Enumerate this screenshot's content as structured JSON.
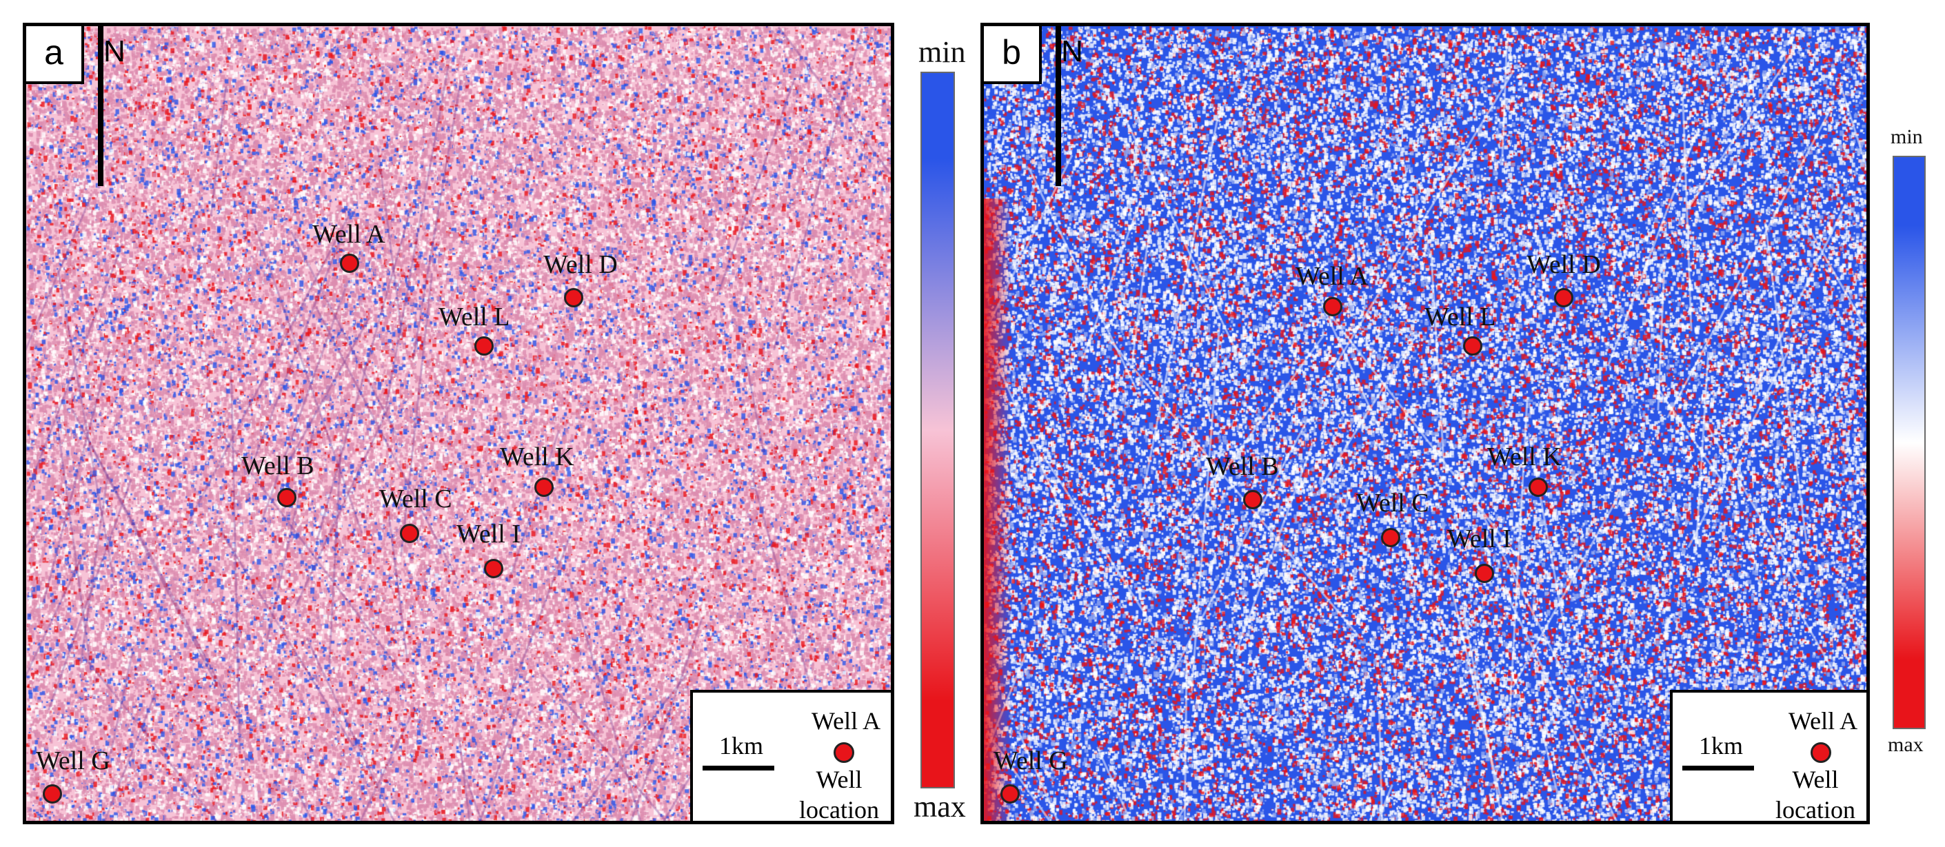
{
  "panels": [
    {
      "label": "a",
      "north": "N",
      "colors": {
        "min": "#2a55e8",
        "mid": "#f7c3d6",
        "max": "#e8141a"
      },
      "wells": [
        {
          "name": "Well A"
        },
        {
          "name": "Well D"
        },
        {
          "name": "Well L"
        },
        {
          "name": "Well K"
        },
        {
          "name": "Well B"
        },
        {
          "name": "Well C"
        },
        {
          "name": "Well I"
        },
        {
          "name": "Well G"
        }
      ],
      "legend": {
        "scale": "1km",
        "well_label": "Well A",
        "desc_line1": "Well",
        "desc_line2": "location"
      },
      "colorbar": {
        "top": "min",
        "bottom": "max"
      }
    },
    {
      "label": "b",
      "north": "N",
      "colors": {
        "min": "#2a55e8",
        "mid": "#ffffff",
        "max": "#e8141a"
      },
      "wells": [
        {
          "name": "Well A"
        },
        {
          "name": "Well D"
        },
        {
          "name": "Well L"
        },
        {
          "name": "Well K"
        },
        {
          "name": "Well B"
        },
        {
          "name": "Well C"
        },
        {
          "name": "Well I"
        },
        {
          "name": "Well G"
        }
      ],
      "legend": {
        "scale": "1km",
        "well_label": "Well A",
        "desc_line1": "Well",
        "desc_line2": "location"
      },
      "colorbar": {
        "top": "min",
        "bottom": "max"
      }
    }
  ]
}
